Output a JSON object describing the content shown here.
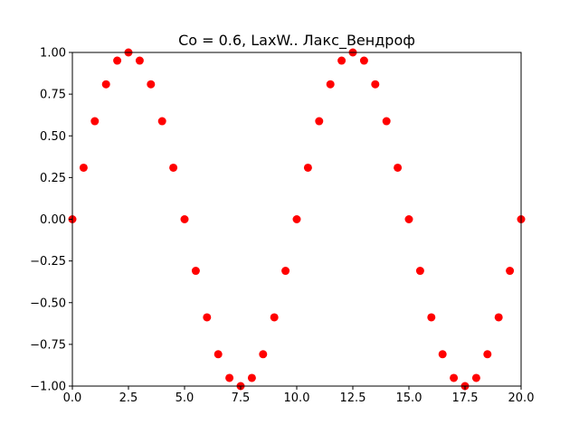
{
  "chart_data": {
    "type": "scatter",
    "title": "Co = 0.6, LaxW.. Лакс_Вендроф",
    "xlabel": "",
    "ylabel": "",
    "xlim": [
      0,
      20
    ],
    "ylim": [
      -1,
      1
    ],
    "x_ticks": [
      "0.0",
      "2.5",
      "5.0",
      "7.5",
      "10.0",
      "12.5",
      "15.0",
      "17.5",
      "20.0"
    ],
    "y_ticks": [
      "1.00",
      "0.75",
      "0.50",
      "0.25",
      "0.00",
      "−0.25",
      "−0.50",
      "−0.75",
      "−1.00"
    ],
    "grid": false,
    "marker_color": "#ff0000",
    "series": [
      {
        "x": [
          0,
          0.5,
          1,
          1.5,
          2,
          2.5,
          3,
          3.5,
          4,
          4.5,
          5,
          5.5,
          6,
          6.5,
          7,
          7.5,
          8,
          8.5,
          9,
          9.5,
          10,
          10.5,
          11,
          11.5,
          12,
          12.5,
          13,
          13.5,
          14,
          14.5,
          15,
          15.5,
          16,
          16.5,
          17,
          17.5,
          18,
          18.5,
          19,
          19.5,
          20
        ],
        "y": [
          0,
          0.309,
          0.588,
          0.809,
          0.951,
          1,
          0.951,
          0.809,
          0.588,
          0.309,
          0,
          -0.309,
          -0.588,
          -0.809,
          -0.951,
          -1,
          -0.951,
          -0.809,
          -0.588,
          -0.309,
          0,
          0.309,
          0.588,
          0.809,
          0.951,
          1,
          0.951,
          0.809,
          0.588,
          0.309,
          0,
          -0.309,
          -0.588,
          -0.809,
          -0.951,
          -1,
          -0.951,
          -0.809,
          -0.588,
          -0.309,
          0
        ]
      }
    ]
  }
}
